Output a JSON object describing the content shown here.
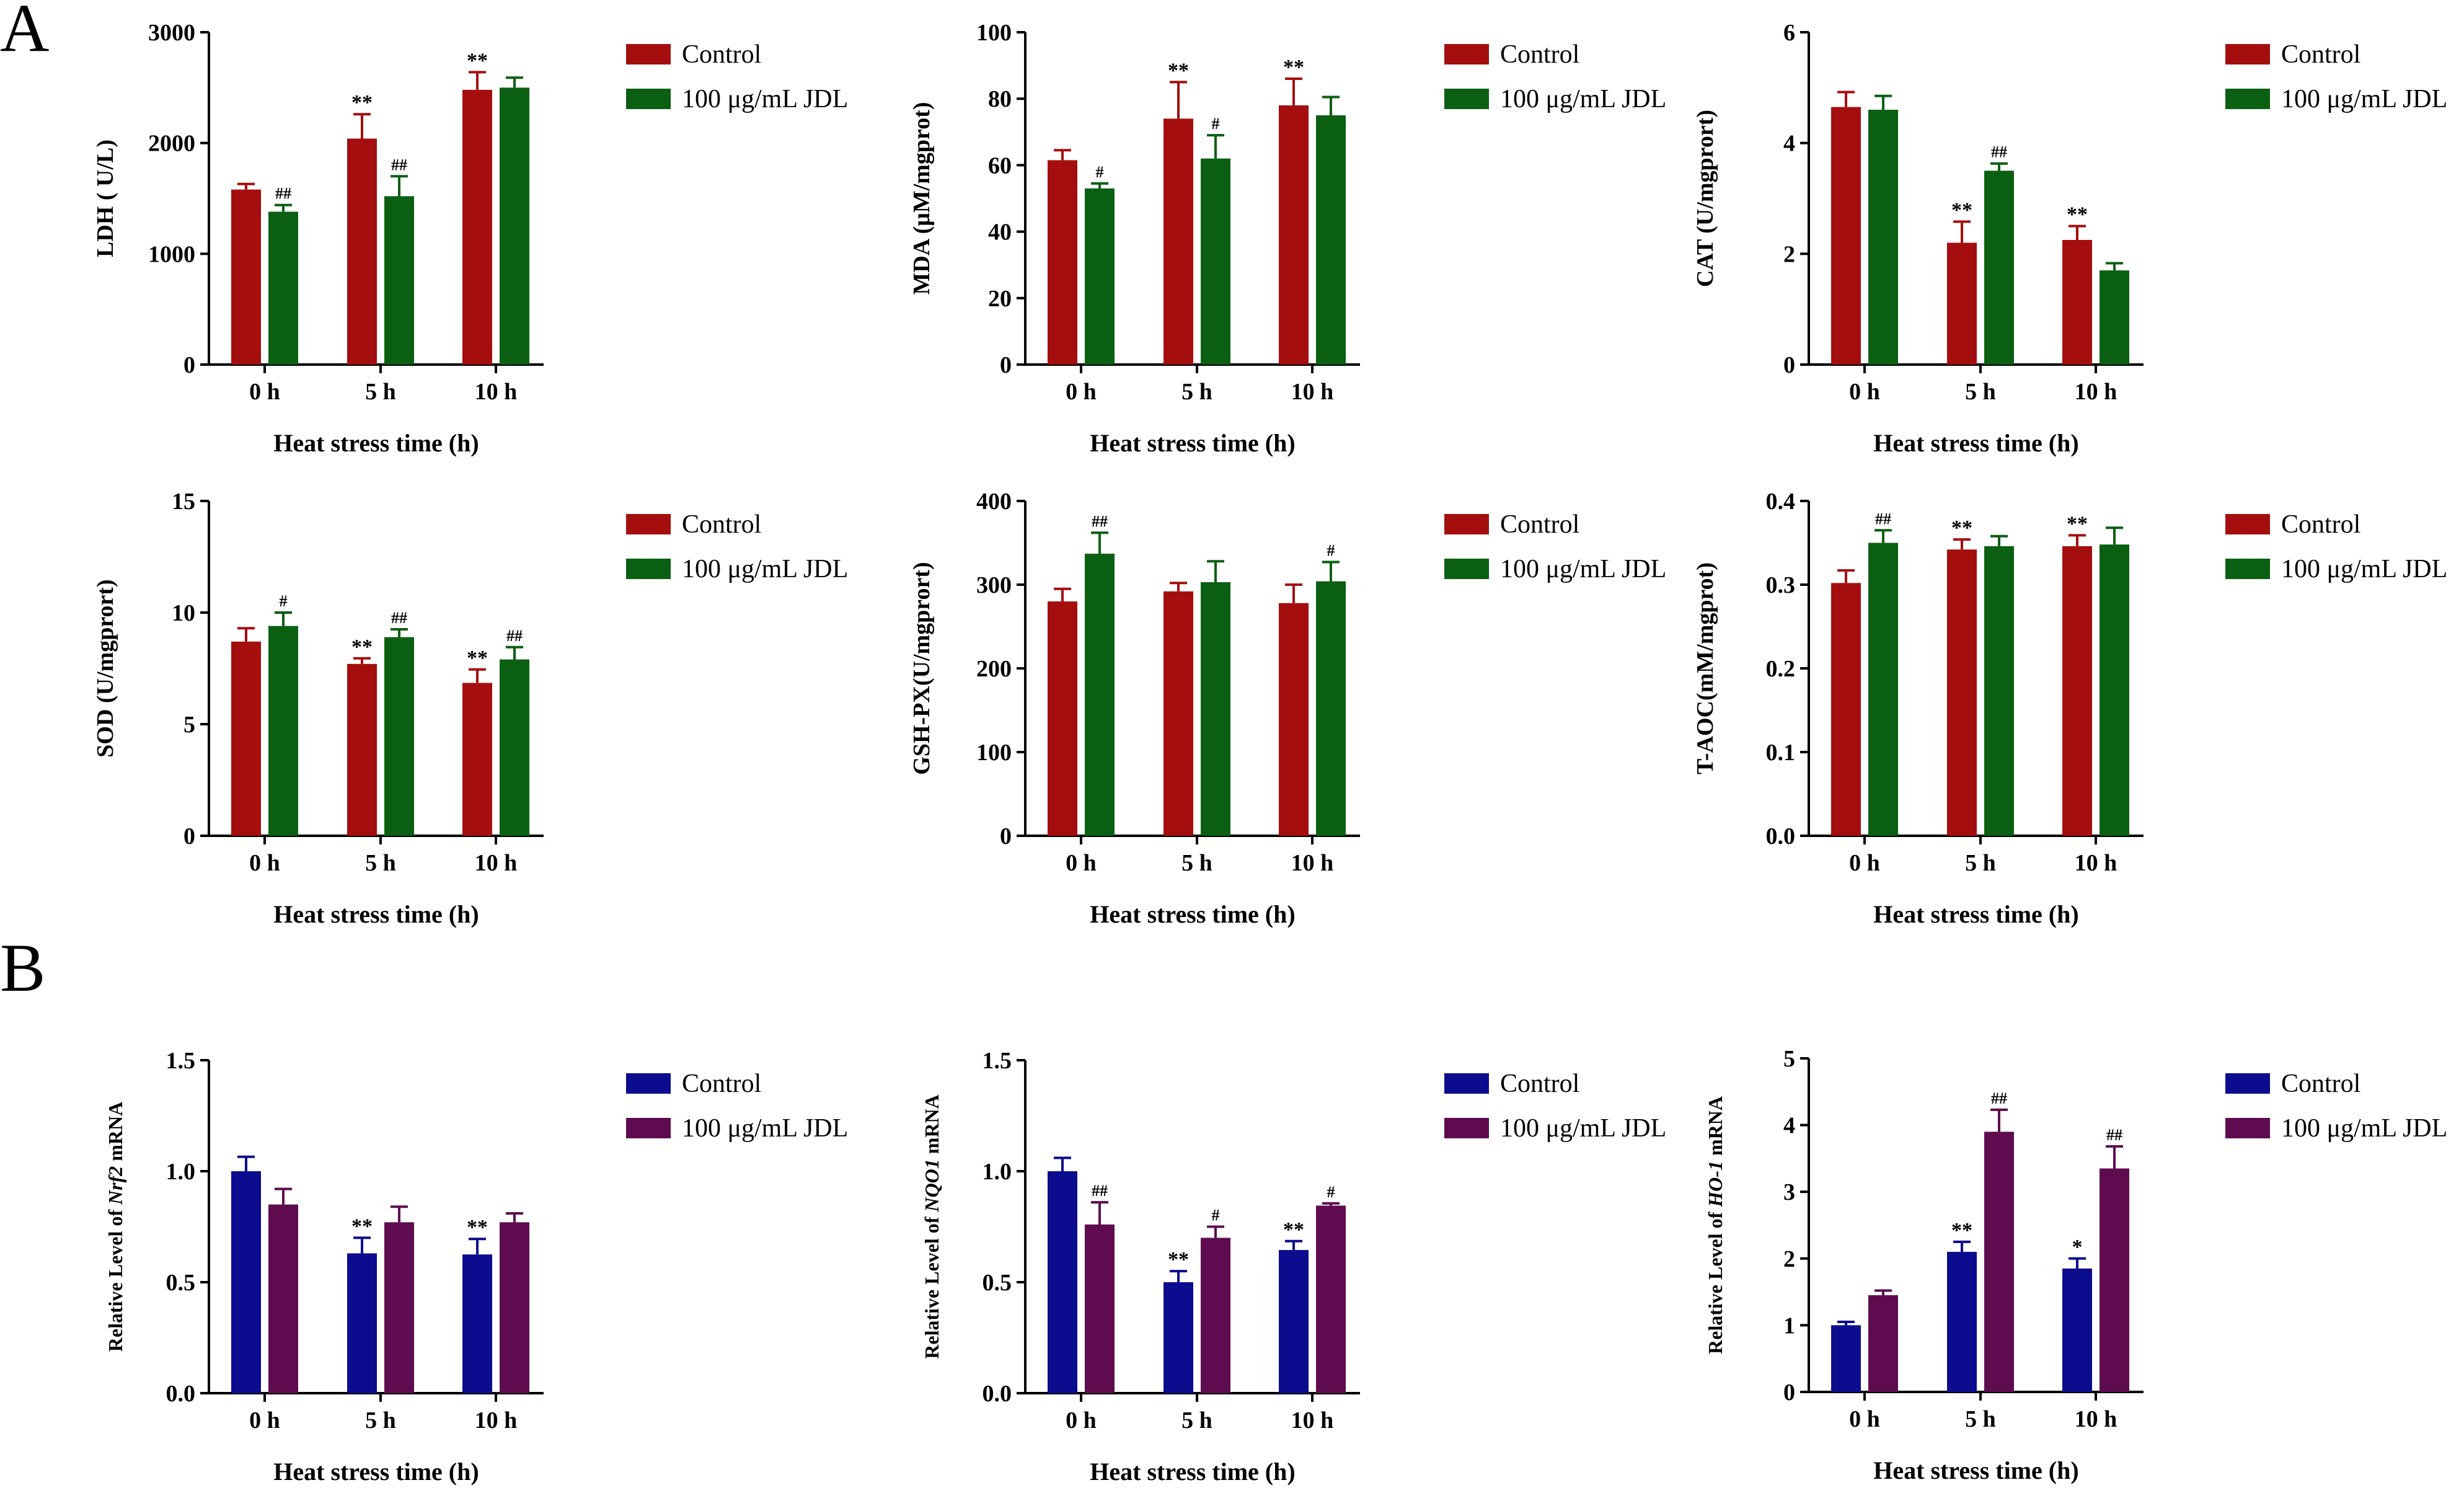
{
  "panel_labels": [
    "A",
    "B"
  ],
  "chart_data": [
    {
      "id": "ldh",
      "type": "bar",
      "panel": "A",
      "ylabel": "LDH ( U/L)",
      "xlabel": "Heat stress time (h)",
      "categories": [
        "0 h",
        "5 h",
        "10 h"
      ],
      "ylim": [
        0,
        3000
      ],
      "yticks": [
        0,
        1000,
        2000,
        3000
      ],
      "ytick_labels": [
        "0",
        "1000",
        "2000",
        "3000"
      ],
      "series": [
        {
          "name": "Control",
          "color": "#a50e0e",
          "values": [
            1580,
            2040,
            2480
          ],
          "errors": [
            50,
            220,
            160
          ],
          "annotations": [
            "",
            "**",
            "**"
          ]
        },
        {
          "name": "100 μg/mL JDL",
          "color": "#0b5f12",
          "values": [
            1380,
            1520,
            2500
          ],
          "errors": [
            60,
            180,
            90
          ],
          "annotations": [
            "##",
            "##",
            ""
          ]
        }
      ]
    },
    {
      "id": "mda",
      "type": "bar",
      "panel": "A",
      "ylabel": "MDA (μM/mgprot)",
      "xlabel": "Heat stress time (h)",
      "categories": [
        "0 h",
        "5 h",
        "10 h"
      ],
      "ylim": [
        0,
        100
      ],
      "yticks": [
        0,
        20,
        40,
        60,
        80,
        100
      ],
      "ytick_labels": [
        "0",
        "20",
        "40",
        "60",
        "80",
        "100"
      ],
      "series": [
        {
          "name": "Control",
          "color": "#a50e0e",
          "values": [
            61.5,
            74,
            78
          ],
          "errors": [
            3,
            11,
            8
          ],
          "annotations": [
            "",
            "**",
            "**"
          ]
        },
        {
          "name": "100 μg/mL JDL",
          "color": "#0b5f12",
          "values": [
            53,
            62,
            75
          ],
          "errors": [
            1.5,
            7,
            5.5
          ],
          "annotations": [
            "#",
            "#",
            ""
          ]
        }
      ]
    },
    {
      "id": "cat",
      "type": "bar",
      "panel": "A",
      "ylabel": "CAT (U/mgprort)",
      "xlabel": "Heat stress time (h)",
      "categories": [
        "0 h",
        "5 h",
        "10 h"
      ],
      "ylim": [
        0,
        6
      ],
      "yticks": [
        0,
        2,
        4,
        6
      ],
      "ytick_labels": [
        "0",
        "2",
        "4",
        "6"
      ],
      "series": [
        {
          "name": "Control",
          "color": "#a50e0e",
          "values": [
            4.65,
            2.2,
            2.25
          ],
          "errors": [
            0.27,
            0.38,
            0.25
          ],
          "annotations": [
            "",
            "**",
            "**"
          ]
        },
        {
          "name": "100 μg/mL JDL",
          "color": "#0b5f12",
          "values": [
            4.6,
            3.5,
            1.7
          ],
          "errors": [
            0.25,
            0.13,
            0.13
          ],
          "annotations": [
            "",
            "##",
            ""
          ]
        }
      ]
    },
    {
      "id": "sod",
      "type": "bar",
      "panel": "A",
      "ylabel": "SOD (U/mgprort)",
      "xlabel": "Heat stress time (h)",
      "categories": [
        "0 h",
        "5 h",
        "10 h"
      ],
      "ylim": [
        0,
        15
      ],
      "yticks": [
        0,
        5,
        10,
        15
      ],
      "ytick_labels": [
        "0",
        "5",
        "10",
        "15"
      ],
      "series": [
        {
          "name": "Control",
          "color": "#a50e0e",
          "values": [
            8.7,
            7.7,
            6.85
          ],
          "errors": [
            0.6,
            0.25,
            0.6
          ],
          "annotations": [
            "",
            "**",
            "**"
          ]
        },
        {
          "name": "100 μg/mL JDL",
          "color": "#0b5f12",
          "values": [
            9.4,
            8.9,
            7.9
          ],
          "errors": [
            0.6,
            0.35,
            0.55
          ],
          "annotations": [
            "#",
            "##",
            "##"
          ]
        }
      ]
    },
    {
      "id": "gshpx",
      "type": "bar",
      "panel": "A",
      "ylabel": "GSH-PX(U/mgprort)",
      "xlabel": "Heat stress time (h)",
      "categories": [
        "0 h",
        "5 h",
        "10 h"
      ],
      "ylim": [
        0,
        400
      ],
      "yticks": [
        0,
        100,
        200,
        300,
        400
      ],
      "ytick_labels": [
        "0",
        "100",
        "200",
        "300",
        "400"
      ],
      "series": [
        {
          "name": "Control",
          "color": "#a50e0e",
          "values": [
            280,
            292,
            278
          ],
          "errors": [
            15,
            10,
            22
          ],
          "annotations": [
            "",
            "",
            ""
          ]
        },
        {
          "name": "100 μg/mL JDL",
          "color": "#0b5f12",
          "values": [
            337,
            303,
            304
          ],
          "errors": [
            25,
            25,
            23
          ],
          "annotations": [
            "##",
            "",
            "#"
          ]
        }
      ]
    },
    {
      "id": "taoc",
      "type": "bar",
      "panel": "A",
      "ylabel": "T-AOC(mM/mgprot)",
      "xlabel": "Heat stress time (h)",
      "categories": [
        "0 h",
        "5 h",
        "10 h"
      ],
      "ylim": [
        0,
        0.4
      ],
      "yticks": [
        0,
        0.1,
        0.2,
        0.3,
        0.4
      ],
      "ytick_labels": [
        "0.0",
        "0.1",
        "0.2",
        "0.3",
        "0.4"
      ],
      "series": [
        {
          "name": "Control",
          "color": "#a50e0e",
          "values": [
            0.302,
            0.342,
            0.346
          ],
          "errors": [
            0.015,
            0.012,
            0.013
          ],
          "annotations": [
            "",
            "**",
            "**"
          ]
        },
        {
          "name": "100 μg/mL JDL",
          "color": "#0b5f12",
          "values": [
            0.35,
            0.346,
            0.348
          ],
          "errors": [
            0.015,
            0.012,
            0.02
          ],
          "annotations": [
            "##",
            "",
            ""
          ]
        }
      ]
    },
    {
      "id": "nrf2",
      "type": "bar",
      "panel": "B",
      "ylabel": "Relative Level of Nrf2 mRNA",
      "ylabel_parts": [
        "Relative Level of ",
        "Nrf2",
        " mRNA"
      ],
      "xlabel": "Heat stress time (h)",
      "categories": [
        "0 h",
        "5 h",
        "10 h"
      ],
      "ylim": [
        0,
        1.5
      ],
      "yticks": [
        0,
        0.5,
        1.0,
        1.5
      ],
      "ytick_labels": [
        "0.0",
        "0.5",
        "1.0",
        "1.5"
      ],
      "series": [
        {
          "name": "Control",
          "color": "#0c0c8e",
          "values": [
            1.0,
            0.63,
            0.625
          ],
          "errors": [
            0.065,
            0.07,
            0.07
          ],
          "annotations": [
            "",
            "**",
            "**"
          ]
        },
        {
          "name": "100 μg/mL JDL",
          "color": "#5e0c4f",
          "values": [
            0.85,
            0.77,
            0.77
          ],
          "errors": [
            0.07,
            0.07,
            0.04
          ],
          "annotations": [
            "",
            "",
            ""
          ]
        }
      ]
    },
    {
      "id": "nqo1",
      "type": "bar",
      "panel": "B",
      "ylabel": "Relative Level of NQO1 mRNA",
      "ylabel_parts": [
        "Relative Level of ",
        "NQO1",
        " mRNA"
      ],
      "xlabel": "Heat stress time (h)",
      "categories": [
        "0 h",
        "5 h",
        "10 h"
      ],
      "ylim": [
        0,
        1.5
      ],
      "yticks": [
        0,
        0.5,
        1.0,
        1.5
      ],
      "ytick_labels": [
        "0.0",
        "0.5",
        "1.0",
        "1.5"
      ],
      "series": [
        {
          "name": "Control",
          "color": "#0c0c8e",
          "values": [
            1.0,
            0.5,
            0.645
          ],
          "errors": [
            0.06,
            0.05,
            0.04
          ],
          "annotations": [
            "",
            "**",
            "**"
          ]
        },
        {
          "name": "100 μg/mL JDL",
          "color": "#5e0c4f",
          "values": [
            0.76,
            0.7,
            0.845
          ],
          "errors": [
            0.1,
            0.05,
            0.01
          ],
          "annotations": [
            "##",
            "#",
            "#"
          ]
        }
      ]
    },
    {
      "id": "ho1",
      "type": "bar",
      "panel": "B",
      "ylabel": "Relative Level of HO-1 mRNA",
      "ylabel_parts": [
        "Relative Level of ",
        "HO-1",
        " mRNA"
      ],
      "xlabel": "Heat stress time (h)",
      "categories": [
        "0 h",
        "5 h",
        "10 h"
      ],
      "ylim": [
        0,
        5
      ],
      "yticks": [
        0,
        1,
        2,
        3,
        4,
        5
      ],
      "ytick_labels": [
        "0",
        "1",
        "2",
        "3",
        "4",
        "5"
      ],
      "series": [
        {
          "name": "Control",
          "color": "#0c0c8e",
          "values": [
            1.0,
            2.1,
            1.85
          ],
          "errors": [
            0.05,
            0.15,
            0.15
          ],
          "annotations": [
            "",
            "**",
            "*"
          ]
        },
        {
          "name": "100 μg/mL JDL",
          "color": "#5e0c4f",
          "values": [
            1.45,
            3.9,
            3.35
          ],
          "errors": [
            0.07,
            0.33,
            0.33
          ],
          "annotations": [
            "",
            "##",
            "##"
          ]
        }
      ]
    }
  ]
}
